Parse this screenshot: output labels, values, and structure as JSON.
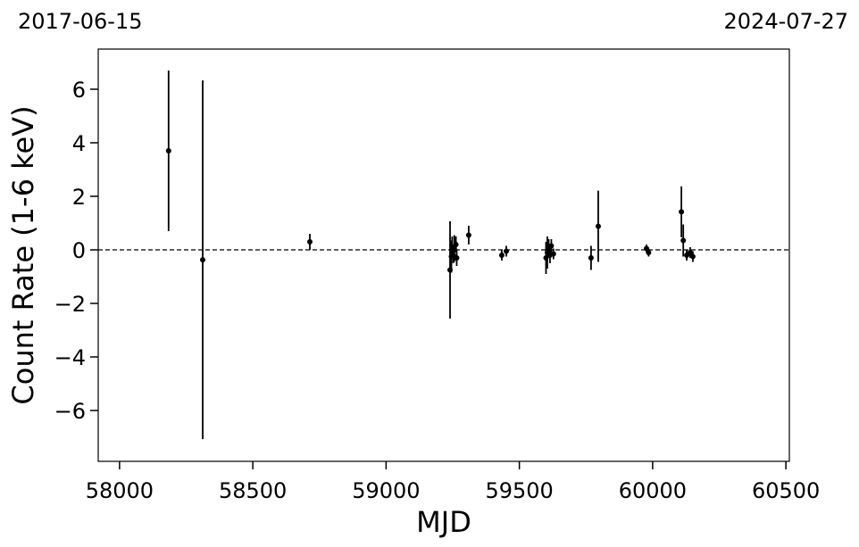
{
  "chart_data": {
    "type": "errorbar",
    "xlabel": "MJD",
    "ylabel": "Count Rate (1-6 keV)",
    "annotations": [
      "2017-06-15",
      "2024-07-27"
    ],
    "x": [
      58184,
      58312,
      58714,
      59240,
      59245,
      59248,
      59252,
      59256,
      59262,
      59265,
      59310,
      59434,
      59451,
      59600,
      59605,
      59610,
      59615,
      59620,
      59628,
      59769,
      59796,
      59977,
      59985,
      60108,
      60115,
      60128,
      60141,
      60151
    ],
    "values": [
      3.7,
      -0.37,
      0.3,
      -0.75,
      -0.25,
      0.1,
      -0.2,
      0.05,
      0.2,
      -0.3,
      0.55,
      -0.2,
      -0.05,
      -0.3,
      -0.1,
      0.1,
      -0.2,
      0.15,
      -0.15,
      -0.3,
      0.88,
      0.05,
      -0.1,
      1.42,
      0.35,
      -0.2,
      -0.1,
      -0.25
    ],
    "errors": [
      3.0,
      6.7,
      0.3,
      1.82,
      0.6,
      0.4,
      0.3,
      0.5,
      0.3,
      0.3,
      0.35,
      0.2,
      0.2,
      0.6,
      0.6,
      0.3,
      0.3,
      0.25,
      0.2,
      0.45,
      1.33,
      0.15,
      0.15,
      0.95,
      0.6,
      0.2,
      0.2,
      0.2
    ],
    "color": "#000000",
    "reference_line": 0,
    "xlim": [
      57920,
      60513
    ],
    "ylim": [
      -7.9,
      7.5
    ],
    "xticks": [
      58000,
      58500,
      59000,
      59500,
      60000,
      60500
    ],
    "yticks": [
      {
        "value": -6,
        "label": "−6"
      },
      {
        "value": -4,
        "label": "−4"
      },
      {
        "value": -2,
        "label": "−2"
      },
      0,
      2,
      4,
      6
    ]
  }
}
